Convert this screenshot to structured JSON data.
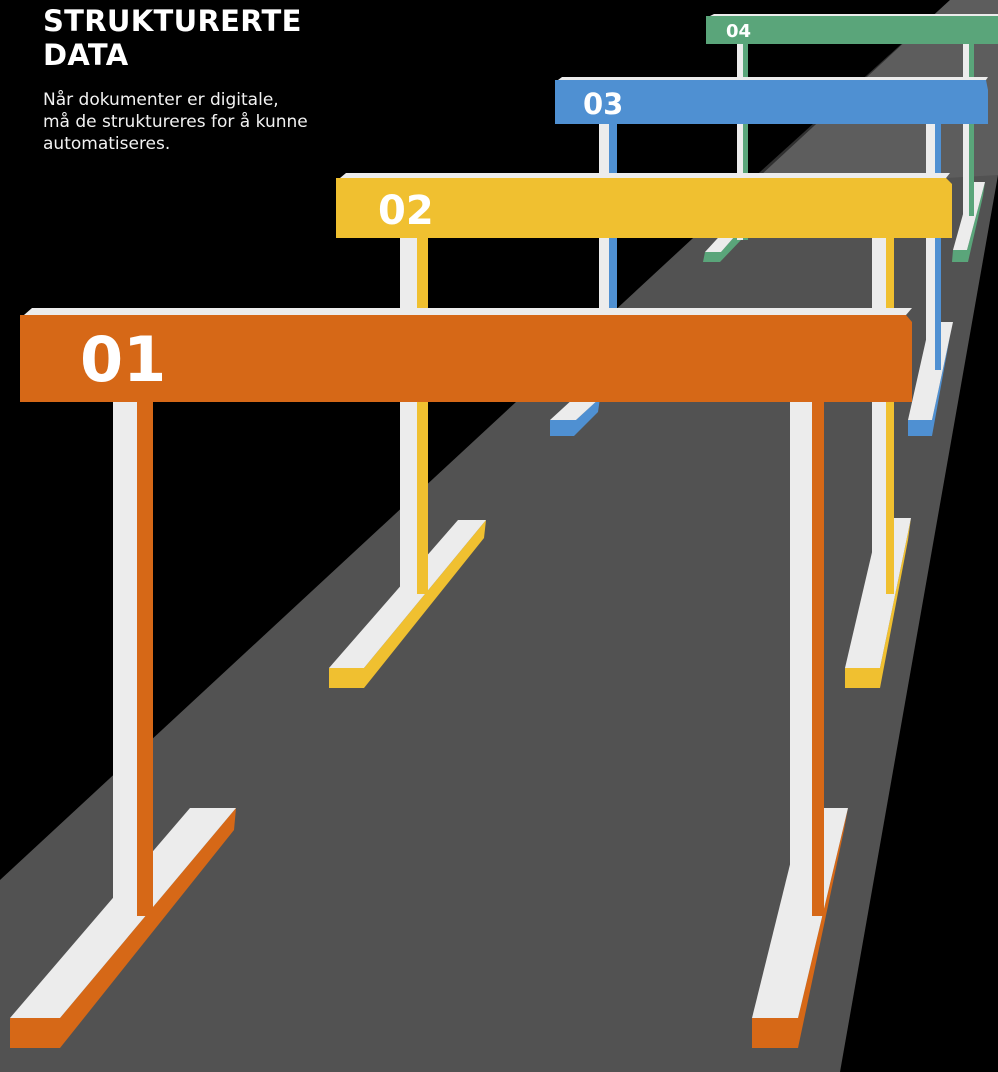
{
  "heading": {
    "title_line1": "STRUKTURERTE",
    "title_line2": "DATA",
    "description_line1": "Når dokumenter er digitale,",
    "description_line2": "må de struktureres for å kunne",
    "description_line3": "automatiseres."
  },
  "hurdles": [
    {
      "number": "04",
      "color": "#5aa57a"
    },
    {
      "number": "03",
      "color": "#4f90d2"
    },
    {
      "number": "02",
      "color": "#f0c030"
    },
    {
      "number": "01",
      "color": "#d66817"
    }
  ],
  "colors": {
    "background": "#000000",
    "track": "#525252",
    "post_face": "#ececec"
  }
}
